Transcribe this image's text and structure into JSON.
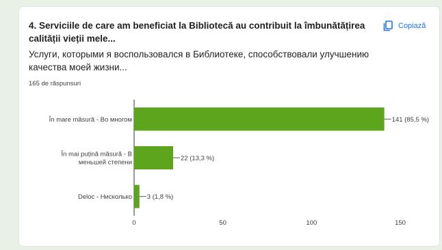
{
  "question": {
    "title": "4. Serviciile de care am beneficiat la Bibliotecă au contribuit la îmbunătățirea calității vieții mele...",
    "subtitle": "Услуги, которыми я воспользовался в Библиотеке, способствовали улучшению качества моей жизни...",
    "response_count": "165 de răspunsuri"
  },
  "copy_button": {
    "label": "Copiază",
    "icon": "copy-icon"
  },
  "colors": {
    "bar": "#5ca51c",
    "accent": "#1a73e8",
    "text": "#202124",
    "axis": "#333333",
    "background": "#e9f1e6"
  },
  "chart_data": {
    "type": "bar",
    "orientation": "horizontal",
    "categories": [
      [
        "În mare măsură - Во многом"
      ],
      [
        "În mai puțină măsură - В",
        "меньшей степени"
      ],
      [
        "Deloc - Нисколько"
      ]
    ],
    "values": [
      141,
      22,
      3
    ],
    "data_labels": [
      "141 (85,5 %)",
      "22 (13,3 %)",
      "3 (1,8 %)"
    ],
    "xlim": [
      0,
      150
    ],
    "x_ticks": [
      0,
      50,
      100,
      150
    ],
    "grid": false,
    "legend": "none"
  }
}
